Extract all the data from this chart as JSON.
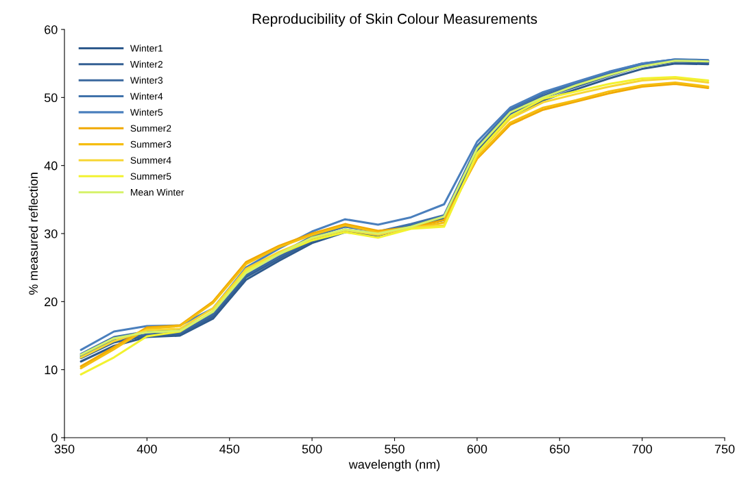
{
  "chart_data": {
    "type": "line",
    "title": "Reproducibility of Skin Colour Measurements",
    "xlabel": "wavelength (nm)",
    "ylabel": "% measured reflection",
    "x": [
      360,
      380,
      400,
      420,
      440,
      460,
      480,
      500,
      520,
      540,
      560,
      580,
      600,
      620,
      640,
      660,
      680,
      700,
      720,
      740
    ],
    "xlim": [
      350,
      750
    ],
    "xticks": [
      350,
      400,
      450,
      500,
      550,
      600,
      650,
      700,
      750
    ],
    "ylim": [
      0,
      60
    ],
    "yticks": [
      0,
      10,
      20,
      30,
      40,
      50,
      60
    ],
    "grid": false,
    "legend": "top left",
    "marker": "none",
    "line_style": "solid",
    "series": [
      {
        "name": "Winter1",
        "color": "#2e5a8c",
        "values": [
          11.2,
          13.5,
          14.8,
          15.0,
          17.5,
          23.2,
          26.0,
          28.6,
          30.2,
          29.7,
          31.0,
          32.0,
          42.0,
          47.2,
          49.6,
          51.2,
          52.8,
          54.2,
          55.0,
          54.9
        ]
      },
      {
        "name": "Winter2",
        "color": "#335f93",
        "values": [
          11.7,
          14.0,
          15.0,
          15.2,
          17.8,
          23.6,
          26.3,
          28.9,
          30.4,
          29.9,
          31.1,
          32.2,
          42.3,
          47.6,
          50.0,
          51.6,
          53.2,
          54.6,
          55.3,
          55.1
        ]
      },
      {
        "name": "Winter3",
        "color": "#3a689e",
        "values": [
          12.0,
          14.3,
          15.2,
          15.4,
          18.1,
          23.9,
          26.6,
          29.1,
          30.6,
          30.0,
          31.2,
          32.4,
          42.6,
          47.9,
          50.3,
          51.9,
          53.5,
          54.9,
          55.5,
          55.3
        ]
      },
      {
        "name": "Winter4",
        "color": "#4072aa",
        "values": [
          12.3,
          14.8,
          15.6,
          15.8,
          18.4,
          24.3,
          27.0,
          29.6,
          31.0,
          30.3,
          31.4,
          32.7,
          42.9,
          48.2,
          50.6,
          52.1,
          53.7,
          55.0,
          55.6,
          55.5
        ]
      },
      {
        "name": "Winter5",
        "color": "#4a7fbd",
        "values": [
          12.9,
          15.6,
          16.4,
          16.5,
          19.0,
          25.0,
          27.8,
          30.3,
          32.1,
          31.3,
          32.4,
          34.3,
          43.5,
          48.5,
          50.8,
          52.3,
          53.8,
          55.0,
          55.6,
          55.4
        ]
      },
      {
        "name": "Summer2",
        "color": "#f0a800",
        "values": [
          10.5,
          13.3,
          16.2,
          16.5,
          20.0,
          25.8,
          28.2,
          30.0,
          31.4,
          30.4,
          30.9,
          32.0,
          41.0,
          46.0,
          48.2,
          49.4,
          50.6,
          51.6,
          52.0,
          51.4
        ]
      },
      {
        "name": "Summer3",
        "color": "#f5bd10",
        "values": [
          10.2,
          13.0,
          16.0,
          16.4,
          19.8,
          25.5,
          28.0,
          29.8,
          31.2,
          30.2,
          30.8,
          31.6,
          41.2,
          46.3,
          48.5,
          49.6,
          50.9,
          51.8,
          52.2,
          51.6
        ]
      },
      {
        "name": "Summer4",
        "color": "#f7d633",
        "values": [
          11.8,
          14.2,
          15.8,
          16.0,
          19.0,
          24.8,
          27.3,
          29.3,
          30.5,
          29.8,
          30.9,
          31.2,
          41.6,
          46.9,
          49.3,
          50.5,
          51.6,
          52.5,
          52.8,
          52.2
        ]
      },
      {
        "name": "Summer5",
        "color": "#f2f230",
        "values": [
          9.3,
          11.8,
          14.9,
          15.6,
          18.6,
          24.5,
          27.0,
          29.0,
          30.2,
          29.4,
          30.7,
          31.0,
          41.8,
          47.2,
          49.8,
          50.9,
          52.0,
          52.8,
          53.0,
          52.5
        ]
      },
      {
        "name": "Mean Winter",
        "color": "#d6f26a",
        "values": [
          12.2,
          14.6,
          15.5,
          15.7,
          18.5,
          24.2,
          27.0,
          29.4,
          30.6,
          30.0,
          31.0,
          32.5,
          42.5,
          47.8,
          50.0,
          51.8,
          53.3,
          54.6,
          55.4,
          55.3
        ]
      }
    ]
  }
}
